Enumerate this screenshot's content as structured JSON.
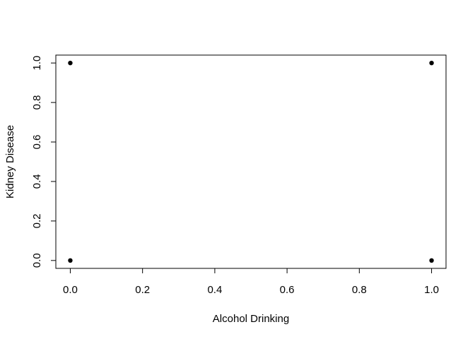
{
  "chart_data": {
    "type": "scatter",
    "title": "",
    "xlabel": "Alcohol Drinking",
    "ylabel": "Kidney Disease",
    "xlim": [
      -0.04,
      1.04
    ],
    "ylim": [
      -0.04,
      1.04
    ],
    "x_ticks": [
      "0.0",
      "0.2",
      "0.4",
      "0.6",
      "0.8",
      "1.0"
    ],
    "y_ticks": [
      "0.0",
      "0.2",
      "0.4",
      "0.6",
      "0.8",
      "1.0"
    ],
    "grid": false,
    "points": [
      {
        "x": 0,
        "y": 1
      },
      {
        "x": 1,
        "y": 1
      },
      {
        "x": 0,
        "y": 0
      },
      {
        "x": 1,
        "y": 0
      }
    ],
    "point_color": "#000000"
  }
}
